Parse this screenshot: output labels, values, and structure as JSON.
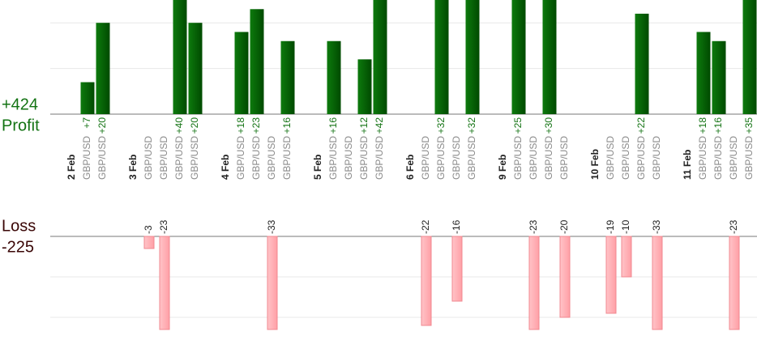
{
  "profit": {
    "total": "+424",
    "label": "Profit",
    "ylim": [
      0,
      25
    ],
    "yticks": [
      0,
      10,
      20
    ]
  },
  "loss": {
    "total": "-225",
    "label": "Loss",
    "ylim": [
      0,
      -23
    ],
    "yticks": [
      0,
      -10,
      -20
    ]
  },
  "days": [
    {
      "date": "2 Feb",
      "trades": [
        {
          "pair": "GBP/USD",
          "value": 7,
          "label": "+7"
        },
        {
          "pair": "GBP/USD",
          "value": 20,
          "label": "+20"
        }
      ]
    },
    {
      "date": "3 Feb",
      "trades": [
        {
          "pair": "GBP/USD",
          "value": -3
        },
        {
          "pair": "GBP/USD",
          "value": -23
        },
        {
          "pair": "GBP/USD",
          "value": 40,
          "label": "+40"
        },
        {
          "pair": "GBP/USD",
          "value": 20,
          "label": "+20"
        }
      ]
    },
    {
      "date": "4 Feb",
      "trades": [
        {
          "pair": "GBP/USD",
          "value": 18,
          "label": "+18"
        },
        {
          "pair": "GBP/USD",
          "value": 23,
          "label": "+23"
        },
        {
          "pair": "GBP/USD",
          "value": -33
        },
        {
          "pair": "GBP/USD",
          "value": 16,
          "label": "+16"
        }
      ]
    },
    {
      "date": "5 Feb",
      "trades": [
        {
          "pair": "GBP/USD",
          "value": 16,
          "label": "+16"
        },
        {
          "pair": "GBP/USD",
          "value": null
        },
        {
          "pair": "GBP/USD",
          "value": 12,
          "label": "+12"
        },
        {
          "pair": "GBP/USD",
          "value": 42,
          "label": "+42"
        }
      ]
    },
    {
      "date": "6 Feb",
      "trades": [
        {
          "pair": "GBP/USD",
          "value": -22
        },
        {
          "pair": "GBP/USD",
          "value": 32,
          "label": "+32"
        },
        {
          "pair": "GBP/USD",
          "value": -16
        },
        {
          "pair": "GBP/USD",
          "value": 32,
          "label": "+32"
        }
      ]
    },
    {
      "date": "9 Feb",
      "trades": [
        {
          "pair": "GBP/USD",
          "value": 25,
          "label": "+25"
        },
        {
          "pair": "GBP/USD",
          "value": -23
        },
        {
          "pair": "GBP/USD",
          "value": 30,
          "label": "+30"
        },
        {
          "pair": "GBP/USD",
          "value": -20
        }
      ]
    },
    {
      "date": "10 Feb",
      "trades": [
        {
          "pair": "GBP/USD",
          "value": -19
        },
        {
          "pair": "GBP/USD",
          "value": -10
        },
        {
          "pair": "GBP/USD",
          "value": 22,
          "label": "+22"
        },
        {
          "pair": "GBP/USD",
          "value": -33
        }
      ]
    },
    {
      "date": "11 Feb",
      "trades": [
        {
          "pair": "GBP/USD",
          "value": 18,
          "label": "+18"
        },
        {
          "pair": "GBP/USD",
          "value": 16,
          "label": "+16"
        },
        {
          "pair": "GBP/USD",
          "value": -23
        },
        {
          "pair": "GBP/USD",
          "value": 35,
          "label": "+35"
        }
      ]
    }
  ]
}
